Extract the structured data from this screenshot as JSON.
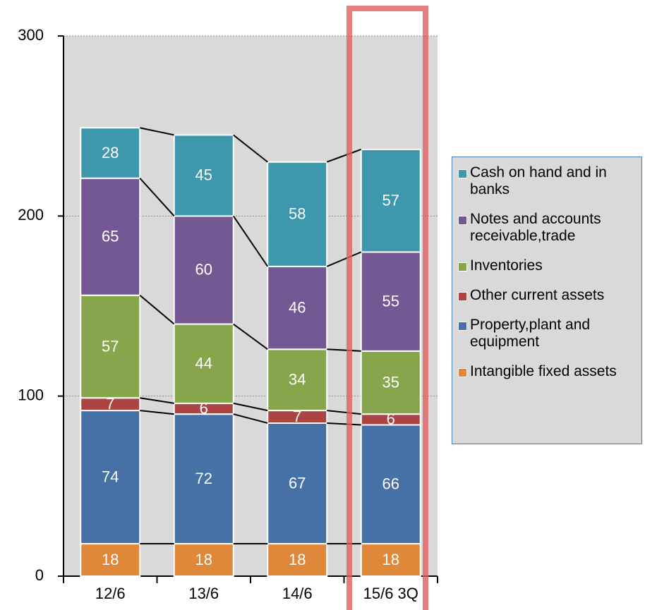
{
  "chart_data": {
    "type": "stacked_bar",
    "categories": [
      "12/6",
      "13/6",
      "14/6",
      "15/6 3Q"
    ],
    "series": [
      {
        "name": "Intangible fixed assets",
        "color": "#e0883a",
        "values": [
          18,
          18,
          18,
          18
        ]
      },
      {
        "name": "Property,plant and equipment",
        "color": "#4571a7",
        "values": [
          74,
          72,
          67,
          66
        ]
      },
      {
        "name": "Other current assets",
        "color": "#ab4442",
        "values": [
          7,
          6,
          7,
          6
        ]
      },
      {
        "name": "Inventories",
        "color": "#87a64b",
        "values": [
          57,
          44,
          34,
          35
        ]
      },
      {
        "name": "Notes and accounts receivable,trade",
        "color": "#735893",
        "values": [
          65,
          60,
          46,
          55
        ]
      },
      {
        "name": "Cash on hand and in banks",
        "color": "#3d98ae",
        "values": [
          28,
          45,
          58,
          57
        ]
      }
    ],
    "ylim": [
      0,
      300
    ],
    "yticks": [
      0,
      100,
      200,
      300
    ],
    "grid": true,
    "legend": "right"
  }
}
